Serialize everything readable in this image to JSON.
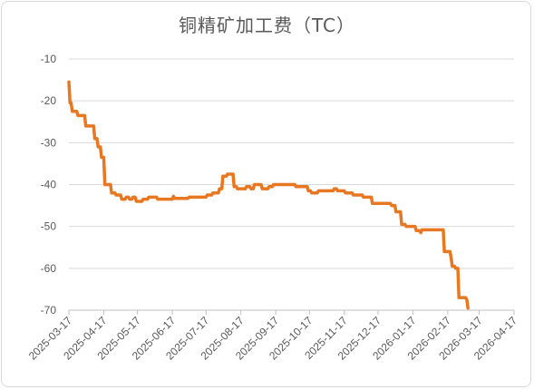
{
  "chart_data": {
    "type": "line",
    "title": "铜精矿加工费（TC）",
    "xlabel": "",
    "ylabel": "",
    "ylim": [
      -70,
      -10
    ],
    "yticks": [
      -10,
      -20,
      -30,
      -40,
      -50,
      -60,
      -70
    ],
    "xlim": [
      "2025-03-17",
      "2026-04-17"
    ],
    "xtick_labels": [
      "2025-03-17",
      "2025-04-17",
      "2025-05-17",
      "2025-06-17",
      "2025-07-17",
      "2025-08-17",
      "2025-09-17",
      "2025-10-17",
      "2025-11-17",
      "2025-12-17",
      "2026-01-17",
      "2026-02-17",
      "2026-03-17",
      "2026-04-17"
    ],
    "grid": "horizontal",
    "legend": "none",
    "series": [
      {
        "color": "#e87722",
        "points": [
          [
            "2025-03-17",
            -15.5
          ],
          [
            "2025-03-18",
            -20.5
          ],
          [
            "2025-03-19",
            -20.5
          ],
          [
            "2025-03-20",
            -22.5
          ],
          [
            "2025-03-24",
            -22.5
          ],
          [
            "2025-03-25",
            -23.5
          ],
          [
            "2025-03-31",
            -23.5
          ],
          [
            "2025-04-01",
            -26.0
          ],
          [
            "2025-04-08",
            -26.0
          ],
          [
            "2025-04-09",
            -29.0
          ],
          [
            "2025-04-11",
            -29.0
          ],
          [
            "2025-04-12",
            -31.0
          ],
          [
            "2025-04-14",
            -31.0
          ],
          [
            "2025-04-15",
            -33.5
          ],
          [
            "2025-04-17",
            -33.5
          ],
          [
            "2025-04-18",
            -40.0
          ],
          [
            "2025-04-23",
            -40.0
          ],
          [
            "2025-04-24",
            -42.0
          ],
          [
            "2025-04-27",
            -42.0
          ],
          [
            "2025-04-28",
            -42.5
          ],
          [
            "2025-05-02",
            -42.5
          ],
          [
            "2025-05-03",
            -43.5
          ],
          [
            "2025-05-06",
            -43.5
          ],
          [
            "2025-05-07",
            -43.0
          ],
          [
            "2025-05-09",
            -43.0
          ],
          [
            "2025-05-10",
            -43.5
          ],
          [
            "2025-05-12",
            -43.5
          ],
          [
            "2025-05-13",
            -43.0
          ],
          [
            "2025-05-15",
            -43.0
          ],
          [
            "2025-05-16",
            -44.0
          ],
          [
            "2025-05-21",
            -44.0
          ],
          [
            "2025-05-22",
            -43.5
          ],
          [
            "2025-05-26",
            -43.5
          ],
          [
            "2025-05-27",
            -43.0
          ],
          [
            "2025-06-03",
            -43.0
          ],
          [
            "2025-06-04",
            -43.5
          ],
          [
            "2025-06-17",
            -43.5
          ],
          [
            "2025-06-18",
            -42.8
          ],
          [
            "2025-06-19",
            -43.3
          ],
          [
            "2025-07-01",
            -43.3
          ],
          [
            "2025-07-02",
            -43.0
          ],
          [
            "2025-07-17",
            -43.0
          ],
          [
            "2025-07-18",
            -42.5
          ],
          [
            "2025-07-22",
            -42.5
          ],
          [
            "2025-07-23",
            -42.0
          ],
          [
            "2025-07-28",
            -42.0
          ],
          [
            "2025-07-29",
            -41.0
          ],
          [
            "2025-07-31",
            -41.0
          ],
          [
            "2025-08-01",
            -38.0
          ],
          [
            "2025-08-04",
            -38.0
          ],
          [
            "2025-08-05",
            -37.5
          ],
          [
            "2025-08-10",
            -37.5
          ],
          [
            "2025-08-11",
            -40.5
          ],
          [
            "2025-08-13",
            -40.5
          ],
          [
            "2025-08-14",
            -41.0
          ],
          [
            "2025-08-21",
            -41.0
          ],
          [
            "2025-08-22",
            -40.5
          ],
          [
            "2025-08-25",
            -40.5
          ],
          [
            "2025-08-26",
            -41.0
          ],
          [
            "2025-08-28",
            -41.0
          ],
          [
            "2025-08-29",
            -40.0
          ],
          [
            "2025-09-04",
            -40.0
          ],
          [
            "2025-09-05",
            -41.0
          ],
          [
            "2025-09-10",
            -41.0
          ],
          [
            "2025-09-11",
            -40.5
          ],
          [
            "2025-09-14",
            -40.5
          ],
          [
            "2025-09-15",
            -40.0
          ],
          [
            "2025-10-04",
            -40.0
          ],
          [
            "2025-10-05",
            -40.5
          ],
          [
            "2025-10-15",
            -40.5
          ],
          [
            "2025-10-16",
            -41.5
          ],
          [
            "2025-10-18",
            -41.5
          ],
          [
            "2025-10-19",
            -42.0
          ],
          [
            "2025-10-24",
            -42.0
          ],
          [
            "2025-10-25",
            -41.5
          ],
          [
            "2025-11-07",
            -41.5
          ],
          [
            "2025-11-08",
            -41.0
          ],
          [
            "2025-11-10",
            -41.0
          ],
          [
            "2025-11-11",
            -41.5
          ],
          [
            "2025-11-17",
            -41.5
          ],
          [
            "2025-11-18",
            -42.0
          ],
          [
            "2025-11-24",
            -42.0
          ],
          [
            "2025-11-25",
            -42.5
          ],
          [
            "2025-12-03",
            -42.5
          ],
          [
            "2025-12-04",
            -43.0
          ],
          [
            "2025-12-11",
            -43.0
          ],
          [
            "2025-12-12",
            -44.5
          ],
          [
            "2025-12-28",
            -44.5
          ],
          [
            "2025-12-29",
            -45.0
          ],
          [
            "2026-01-01",
            -45.0
          ],
          [
            "2026-01-02",
            -46.5
          ],
          [
            "2026-01-06",
            -46.5
          ],
          [
            "2026-01-07",
            -49.5
          ],
          [
            "2026-01-10",
            -49.5
          ],
          [
            "2026-01-11",
            -50.0
          ],
          [
            "2026-01-19",
            -50.0
          ],
          [
            "2026-01-20",
            -51.0
          ],
          [
            "2026-01-23",
            -51.0
          ],
          [
            "2026-01-24",
            -51.5
          ],
          [
            "2026-01-25",
            -50.8
          ],
          [
            "2026-02-13",
            -50.8
          ],
          [
            "2026-02-14",
            -56.0
          ],
          [
            "2026-02-19",
            -56.0
          ],
          [
            "2026-02-20",
            -57.5
          ],
          [
            "2026-02-21",
            -59.5
          ],
          [
            "2026-02-23",
            -59.5
          ],
          [
            "2026-02-24",
            -60.0
          ],
          [
            "2026-02-26",
            -60.0
          ],
          [
            "2026-02-27",
            -67.0
          ],
          [
            "2026-03-05",
            -67.0
          ],
          [
            "2026-03-06",
            -67.5
          ],
          [
            "2026-03-07",
            -69.5
          ]
        ]
      }
    ]
  }
}
